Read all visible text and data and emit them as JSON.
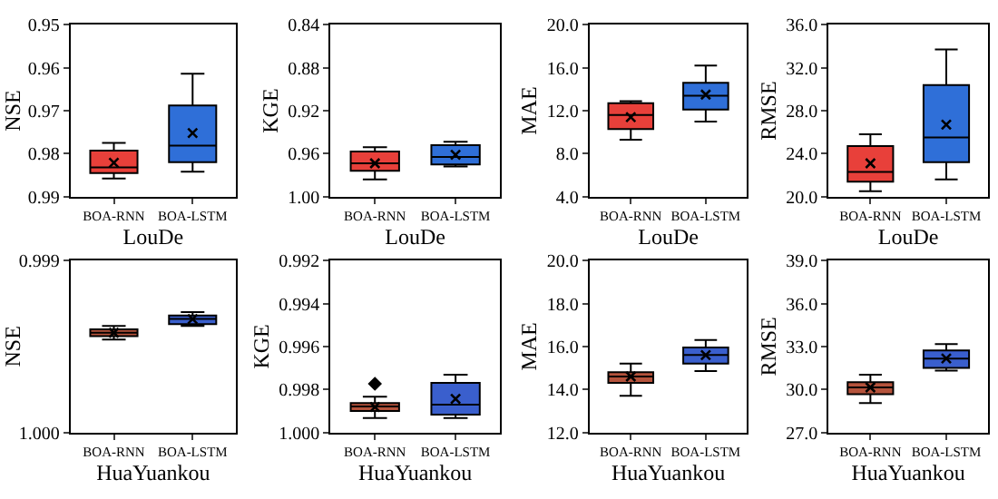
{
  "chart_data": [
    {
      "type": "box",
      "categories": [
        "BOA-RNN",
        "BOA-LSTM"
      ],
      "colors": [
        "#e8403a",
        "#2f6fd8"
      ],
      "xlabel": "LouDe",
      "ylabel": "NSE",
      "ylim": [
        0.99,
        0.95
      ],
      "yticks": [
        0.95,
        0.96,
        0.97,
        0.98,
        0.99
      ],
      "boxes": [
        {
          "low": 0.9775,
          "q1": 0.9793,
          "median": 0.9832,
          "q3": 0.9845,
          "high": 0.9858,
          "mean": 0.9821
        },
        {
          "low": 0.9614,
          "q1": 0.9688,
          "median": 0.9781,
          "q3": 0.982,
          "high": 0.9842,
          "mean": 0.9752
        }
      ]
    },
    {
      "type": "box",
      "categories": [
        "BOA-RNN",
        "BOA-LSTM"
      ],
      "colors": [
        "#e8403a",
        "#2f6fd8"
      ],
      "xlabel": "LouDe",
      "ylabel": "KGE",
      "ylim": [
        1.0,
        0.84
      ],
      "yticks": [
        0.84,
        0.88,
        0.92,
        0.96,
        {
          "value": 1.0,
          "label": "1.00"
        }
      ],
      "boxes": [
        {
          "low": 0.954,
          "q1": 0.958,
          "median": 0.969,
          "q3": 0.976,
          "high": 0.984,
          "mean": 0.969
        },
        {
          "low": 0.949,
          "q1": 0.952,
          "median": 0.963,
          "q3": 0.97,
          "high": 0.972,
          "mean": 0.961
        }
      ]
    },
    {
      "type": "box",
      "categories": [
        "BOA-RNN",
        "BOA-LSTM"
      ],
      "colors": [
        "#e8403a",
        "#2f6fd8"
      ],
      "xlabel": "LouDe",
      "ylabel": "MAE",
      "ylim": [
        4.0,
        20.0
      ],
      "yticks": [
        {
          "value": 4,
          "label": "4.0"
        },
        {
          "value": 8,
          "label": "8.0"
        },
        {
          "value": 12,
          "label": "12.0"
        },
        {
          "value": 16,
          "label": "16.0"
        },
        {
          "value": 20,
          "label": "20.0"
        }
      ],
      "boxes": [
        {
          "low": 9.3,
          "q1": 10.3,
          "median": 11.6,
          "q3": 12.7,
          "high": 12.9,
          "mean": 11.4
        },
        {
          "low": 11.0,
          "q1": 12.1,
          "median": 13.4,
          "q3": 14.6,
          "high": 16.2,
          "mean": 13.5
        }
      ]
    },
    {
      "type": "box",
      "categories": [
        "BOA-RNN",
        "BOA-LSTM"
      ],
      "colors": [
        "#e8403a",
        "#2f6fd8"
      ],
      "xlabel": "LouDe",
      "ylabel": "RMSE",
      "ylim": [
        20.0,
        36.0
      ],
      "yticks": [
        {
          "value": 20,
          "label": "20.0"
        },
        {
          "value": 24,
          "label": "24.0"
        },
        {
          "value": 28,
          "label": "28.0"
        },
        {
          "value": 32,
          "label": "32.0"
        },
        {
          "value": 36,
          "label": "36.0"
        }
      ],
      "boxes": [
        {
          "low": 20.5,
          "q1": 21.4,
          "median": 22.3,
          "q3": 24.7,
          "high": 25.8,
          "mean": 23.1
        },
        {
          "low": 21.6,
          "q1": 23.2,
          "median": 25.5,
          "q3": 30.4,
          "high": 33.7,
          "mean": 26.7
        }
      ]
    },
    {
      "type": "box",
      "categories": [
        "BOA-RNN",
        "BOA-LSTM"
      ],
      "colors": [
        "#b5533c",
        "#3a5fcd"
      ],
      "xlabel": "HuaYuankou",
      "ylabel": "NSE",
      "ylim": [
        1.0,
        0.999
      ],
      "yticks": [
        0.999,
        {
          "value": 1.0,
          "label": "1.000"
        }
      ],
      "boxes": [
        {
          "low": 0.99938,
          "q1": 0.9994,
          "median": 0.99942,
          "q3": 0.99944,
          "high": 0.99946,
          "mean": 0.99942
        },
        {
          "low": 0.9993,
          "q1": 0.99932,
          "median": 0.99934,
          "q3": 0.99937,
          "high": 0.99938,
          "mean": 0.99934
        }
      ]
    },
    {
      "type": "box",
      "categories": [
        "BOA-RNN",
        "BOA-LSTM"
      ],
      "colors": [
        "#b5533c",
        "#3a5fcd"
      ],
      "xlabel": "HuaYuankou",
      "ylabel": "KGE",
      "ylim": [
        1.0,
        0.992
      ],
      "yticks": [
        0.992,
        0.994,
        0.996,
        0.998,
        {
          "value": 1.0,
          "label": "1.000"
        }
      ],
      "boxes": [
        {
          "low": 0.99834,
          "q1": 0.99863,
          "median": 0.99879,
          "q3": 0.99901,
          "high": 0.99933,
          "mean": 0.99882,
          "outliers": [
            0.99774
          ]
        },
        {
          "low": 0.99731,
          "q1": 0.99769,
          "median": 0.99871,
          "q3": 0.99917,
          "high": 0.99933,
          "mean": 0.99844
        }
      ]
    },
    {
      "type": "box",
      "categories": [
        "BOA-RNN",
        "BOA-LSTM"
      ],
      "colors": [
        "#b5533c",
        "#3a5fcd"
      ],
      "xlabel": "HuaYuankou",
      "ylabel": "MAE",
      "ylim": [
        12.0,
        20.0
      ],
      "yticks": [
        {
          "value": 12,
          "label": "12.0"
        },
        {
          "value": 14,
          "label": "14.0"
        },
        {
          "value": 16,
          "label": "16.0"
        },
        {
          "value": 18,
          "label": "18.0"
        },
        {
          "value": 20,
          "label": "20.0"
        }
      ],
      "boxes": [
        {
          "low": 13.7,
          "q1": 14.3,
          "median": 14.6,
          "q3": 14.8,
          "high": 15.2,
          "mean": 14.6
        },
        {
          "low": 14.85,
          "q1": 15.2,
          "median": 15.6,
          "q3": 15.95,
          "high": 16.3,
          "mean": 15.6
        }
      ]
    },
    {
      "type": "box",
      "categories": [
        "BOA-RNN",
        "BOA-LSTM"
      ],
      "colors": [
        "#b5533c",
        "#3a5fcd"
      ],
      "xlabel": "HuaYuankou",
      "ylabel": "RMSE",
      "ylim": [
        27.0,
        39.0
      ],
      "yticks": [
        {
          "value": 27,
          "label": "27.0"
        },
        {
          "value": 30,
          "label": "30.0"
        },
        {
          "value": 33,
          "label": "33.0"
        },
        {
          "value": 36,
          "label": "36.0"
        },
        {
          "value": 39,
          "label": "39.0"
        }
      ],
      "boxes": [
        {
          "low": 29.05,
          "q1": 29.66,
          "median": 30.14,
          "q3": 30.51,
          "high": 31.03,
          "mean": 30.14
        },
        {
          "low": 31.31,
          "q1": 31.51,
          "median": 32.16,
          "q3": 32.72,
          "high": 33.16,
          "mean": 32.16
        }
      ]
    }
  ]
}
